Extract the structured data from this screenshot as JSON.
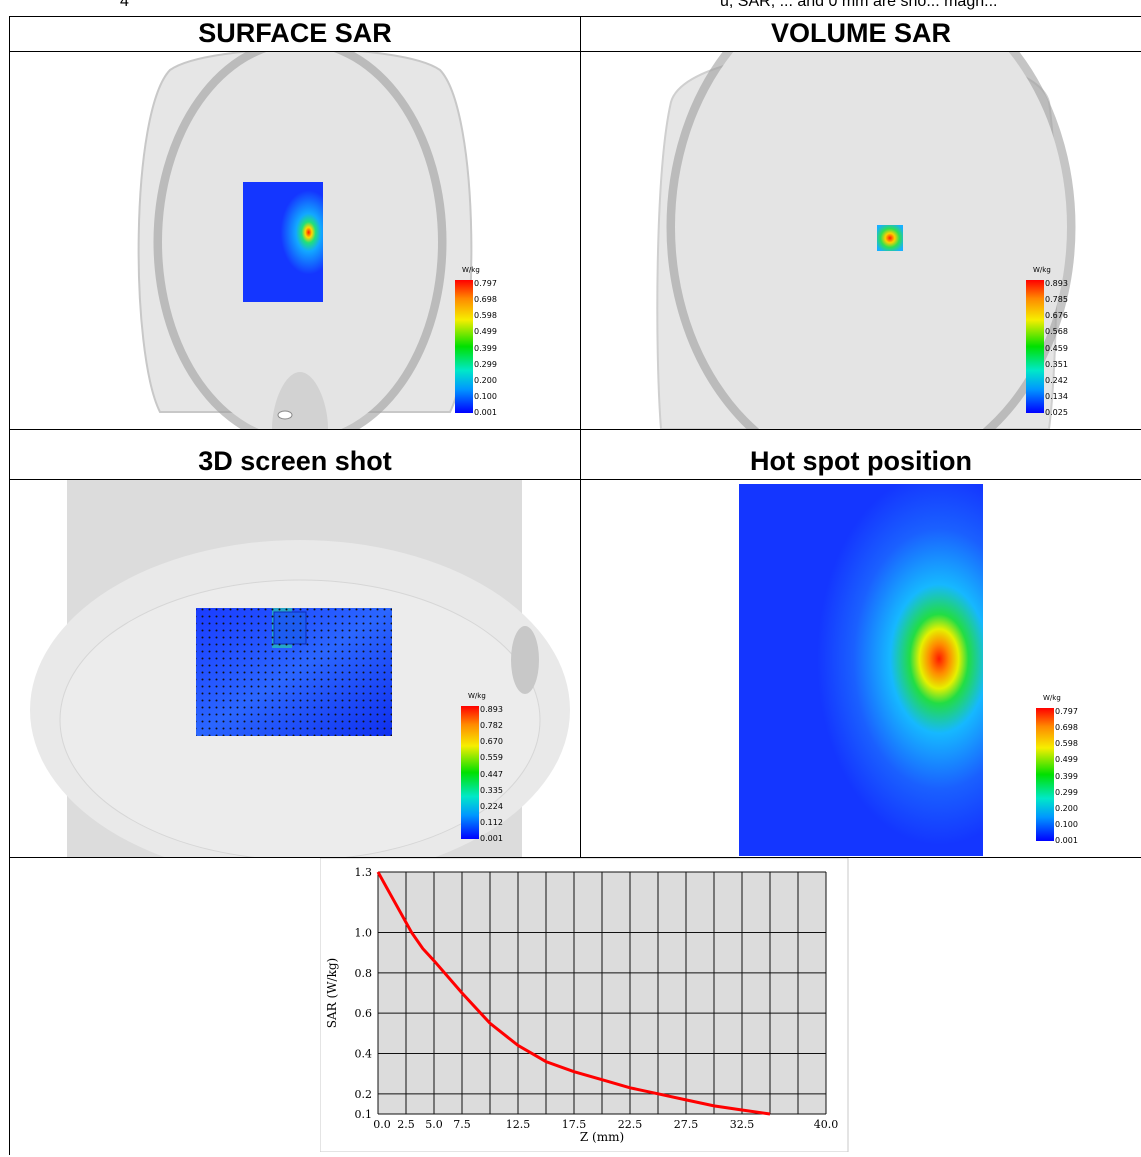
{
  "cut_text": {
    "left": "4",
    "right": "u, SAR, ... and 0 mm are sho... magn..."
  },
  "panels": {
    "surface_sar": {
      "title": "SURFACE SAR",
      "legend": {
        "unit": "W/kg",
        "ticks": [
          "0.797",
          "0.698",
          "0.598",
          "0.499",
          "0.399",
          "0.299",
          "0.200",
          "0.100",
          "0.001"
        ]
      }
    },
    "volume_sar": {
      "title": "VOLUME SAR",
      "legend": {
        "unit": "W/kg",
        "ticks": [
          "0.893",
          "0.785",
          "0.676",
          "0.568",
          "0.459",
          "0.351",
          "0.242",
          "0.134",
          "0.025"
        ]
      }
    },
    "screen_3d": {
      "title": "3D screen shot",
      "legend": {
        "unit": "W/kg",
        "ticks": [
          "0.893",
          "0.782",
          "0.670",
          "0.559",
          "0.447",
          "0.335",
          "0.224",
          "0.112",
          "0.001"
        ]
      }
    },
    "hot_spot": {
      "title": "Hot spot position",
      "legend": {
        "unit": "W/kg",
        "ticks": [
          "0.797",
          "0.698",
          "0.598",
          "0.499",
          "0.399",
          "0.299",
          "0.200",
          "0.100",
          "0.001"
        ]
      }
    }
  },
  "colors": {
    "hot": "#ff1a00",
    "cold": "#0a22ff",
    "phantom": "#e6e6e6",
    "curve": "#ff0000"
  },
  "chart_data": {
    "type": "line",
    "xlabel": "Z (mm)",
    "ylabel": "SAR (W/kg)",
    "xlim": [
      0,
      40
    ],
    "ylim": [
      0.1,
      1.3
    ],
    "x_tick_labels": [
      "0.0",
      "2.5",
      "5.0",
      "7.5",
      "12.5",
      "17.5",
      "22.5",
      "27.5",
      "32.5",
      "40.0"
    ],
    "x_ticks": [
      0,
      2.5,
      5.0,
      7.5,
      12.5,
      17.5,
      22.5,
      27.5,
      32.5,
      40.0
    ],
    "y_tick_labels": [
      "1.3",
      "1.0",
      "0.8",
      "0.6",
      "0.4",
      "0.2",
      "0.1"
    ],
    "y_ticks": [
      1.3,
      1.0,
      0.8,
      0.6,
      0.4,
      0.2,
      0.1
    ],
    "gridlines_x": [
      0,
      2.5,
      5,
      7.5,
      10,
      12.5,
      15,
      17.5,
      20,
      22.5,
      25,
      27.5,
      30,
      32.5,
      35,
      37.5,
      40
    ],
    "grid": true,
    "series": [
      {
        "x": [
          0,
          1,
          2,
          3,
          4,
          5,
          7.5,
          10,
          12.5,
          15,
          17.5,
          20,
          22.5,
          25,
          27.5,
          30,
          32.5,
          35
        ],
        "y": [
          1.3,
          1.2,
          1.1,
          1.0,
          0.92,
          0.86,
          0.7,
          0.55,
          0.44,
          0.36,
          0.31,
          0.27,
          0.23,
          0.2,
          0.17,
          0.14,
          0.12,
          0.1
        ]
      }
    ]
  }
}
